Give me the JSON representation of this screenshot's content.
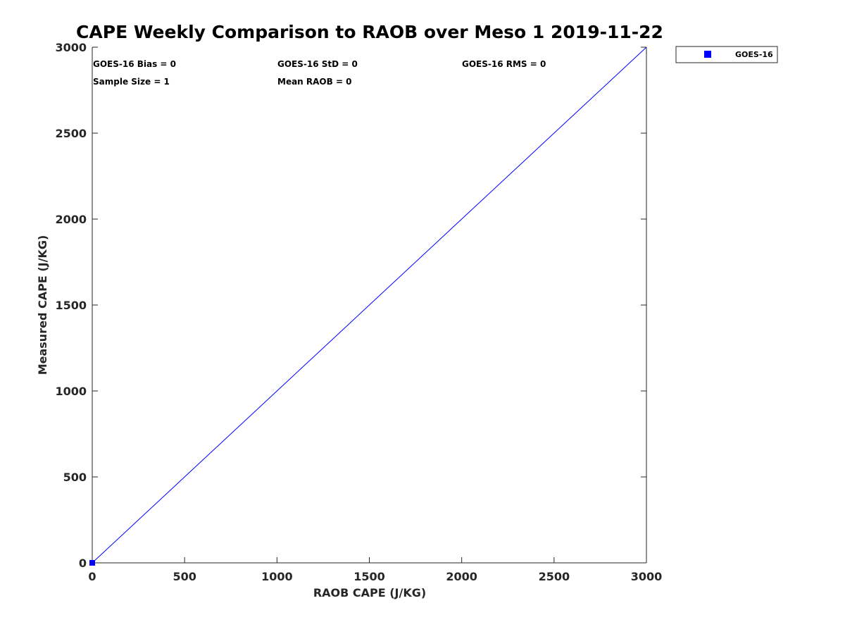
{
  "chart_data": {
    "type": "scatter",
    "title": "CAPE Weekly Comparison to RAOB over Meso 1 2019-11-22",
    "xlabel": "RAOB CAPE (J/KG)",
    "ylabel": "Measured CAPE (J/KG)",
    "xlim": [
      0,
      3000
    ],
    "ylim": [
      0,
      3000
    ],
    "xticks": [
      0,
      500,
      1000,
      1500,
      2000,
      2500,
      3000
    ],
    "yticks": [
      0,
      500,
      1000,
      1500,
      2000,
      2500,
      3000
    ],
    "xtick_labels": [
      "0",
      "500",
      "1000",
      "1500",
      "2000",
      "2500",
      "3000"
    ],
    "ytick_labels": [
      "0",
      "500",
      "1000",
      "1500",
      "2000",
      "2500",
      "3000"
    ],
    "grid": false,
    "legend_position": "outside top-right",
    "series": [
      {
        "name": "GOES-16",
        "color": "#0000ff",
        "marker": "square",
        "x": [
          0
        ],
        "y": [
          0
        ]
      }
    ],
    "reference_line": {
      "x": [
        0,
        3000
      ],
      "y": [
        0,
        3000
      ],
      "color": "#0000ff"
    },
    "annotations": [
      "GOES-16 Bias = 0",
      "GOES-16 StD = 0",
      "GOES-16 RMS = 0",
      "Sample Size = 1",
      "Mean RAOB = 0"
    ]
  }
}
